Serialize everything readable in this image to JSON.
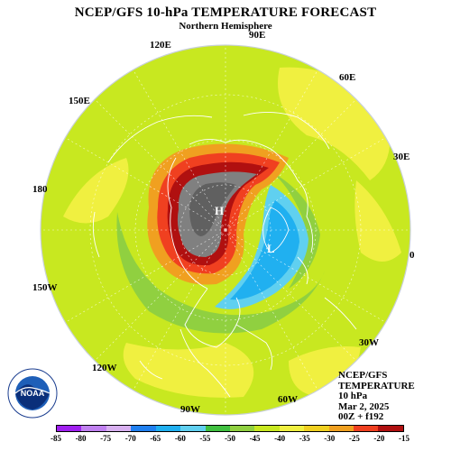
{
  "title": "NCEP/GFS 10-hPa TEMPERATURE FORECAST",
  "subtitle": "Northern Hemisphere",
  "longitude_labels": [
    "90E",
    "120E",
    "60E",
    "150E",
    "30E",
    "180",
    "0",
    "150W",
    "30W",
    "120W",
    "60W",
    "90W"
  ],
  "pressure_centers": [
    {
      "label": "H",
      "meaning": "high"
    },
    {
      "label": "L",
      "meaning": "low"
    }
  ],
  "info": {
    "line1": "NCEP/GFS",
    "line2": "TEMPERATURE",
    "line3": "10 hPa",
    "line4": "Mar 2, 2025",
    "line5": "00Z + f192"
  },
  "logo": {
    "text": "NOAA",
    "name": "noaa-logo"
  },
  "colorbar": {
    "ticks": [
      "-85",
      "-80",
      "-75",
      "-70",
      "-65",
      "-60",
      "-55",
      "-50",
      "-45",
      "-40",
      "-35",
      "-30",
      "-25",
      "-20",
      "-15"
    ],
    "colors": [
      "#a020f0",
      "#c080f0",
      "#d8b0f0",
      "#2080f0",
      "#20b0f0",
      "#60d0f0",
      "#40c040",
      "#90d040",
      "#c8e820",
      "#f0f040",
      "#f0d020",
      "#f0a020",
      "#f04020",
      "#b01010"
    ]
  },
  "field_colors": {
    "background": "#c8e820",
    "ring": "#90d040",
    "cold_core": "#808080",
    "cold_dark": "#606060",
    "cold_blue": "#20b0f0",
    "cold_blue_light": "#60d0f0",
    "warm_red": "#f04020",
    "warm_orange": "#f0a020",
    "warm_yellow": "#f0f040",
    "coast": "#ffffff"
  }
}
